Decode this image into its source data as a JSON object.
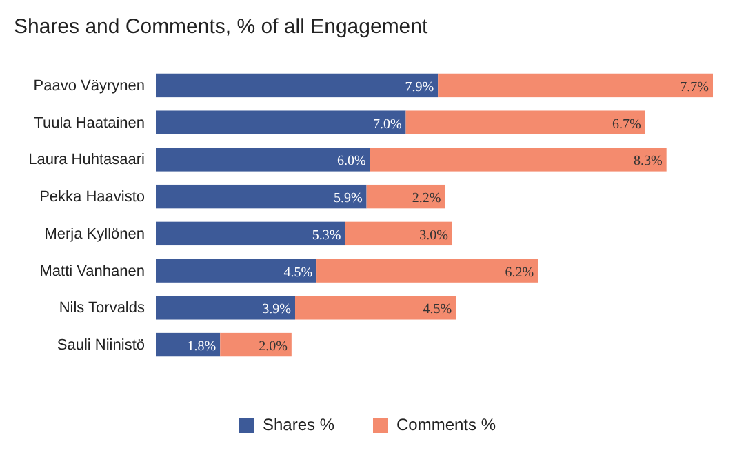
{
  "chart_data": {
    "type": "bar",
    "orientation": "horizontal",
    "stacked": true,
    "title": "Shares and Comments, % of all Engagement",
    "categories": [
      "Paavo Väyrynen",
      "Tuula Haatainen",
      "Laura Huhtasaari",
      "Pekka Haavisto",
      "Merja Kyllönen",
      "Matti Vanhanen",
      "Nils Torvalds",
      "Sauli Niinistö"
    ],
    "series": [
      {
        "name": "Shares %",
        "color": "#3d5a98",
        "values": [
          7.9,
          7.0,
          6.0,
          5.9,
          5.3,
          4.5,
          3.9,
          1.8
        ],
        "value_labels": [
          "7.9%",
          "7.0%",
          "6.0%",
          "5.9%",
          "5.3%",
          "4.5%",
          "3.9%",
          "1.8%"
        ]
      },
      {
        "name": "Comments %",
        "color": "#f48b6e",
        "values": [
          7.7,
          6.7,
          8.3,
          2.2,
          3.0,
          6.2,
          4.5,
          2.0
        ],
        "value_labels": [
          "7.7%",
          "6.7%",
          "8.3%",
          "2.2%",
          "3.0%",
          "6.2%",
          "4.5%",
          "2.0%"
        ]
      }
    ],
    "xlim": [
      0,
      15.6
    ],
    "tick_labels": "y",
    "legend": "bottom"
  }
}
